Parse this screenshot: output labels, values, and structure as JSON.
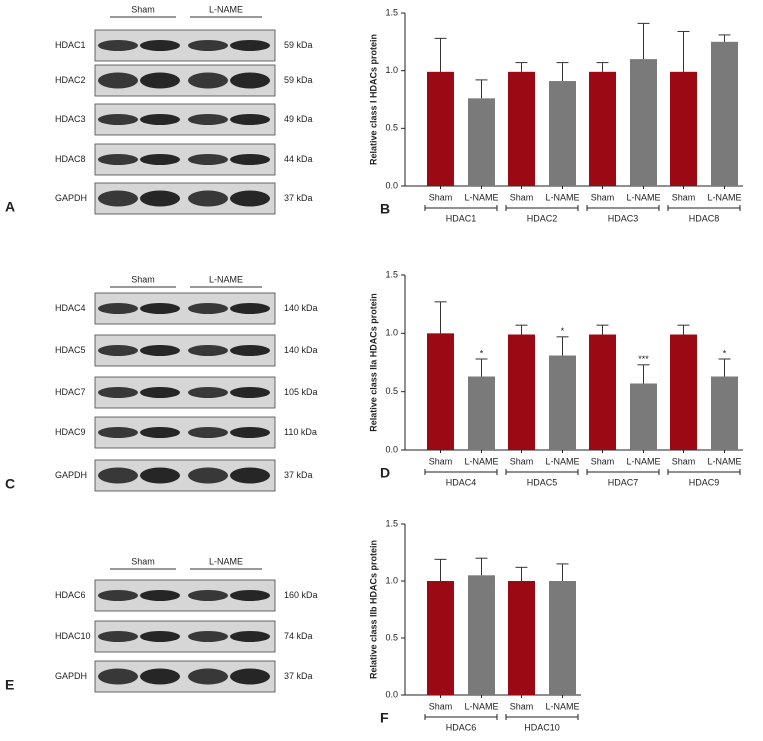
{
  "blots": [
    {
      "panel": "A",
      "groups": [
        "Sham",
        "L-NAME"
      ],
      "rows": [
        {
          "label": "HDAC1",
          "size": "59 kDa"
        },
        {
          "label": "HDAC2",
          "size": "59 kDa"
        },
        {
          "label": "HDAC3",
          "size": "49 kDa"
        },
        {
          "label": "HDAC8",
          "size": "44 kDa"
        },
        {
          "label": "GAPDH",
          "size": "37 kDa"
        }
      ]
    },
    {
      "panel": "C",
      "groups": [
        "Sham",
        "L-NAME"
      ],
      "rows": [
        {
          "label": "HDAC4",
          "size": "140 kDa"
        },
        {
          "label": "HDAC5",
          "size": "140 kDa"
        },
        {
          "label": "HDAC7",
          "size": "105 kDa"
        },
        {
          "label": "HDAC9",
          "size": "110 kDa"
        },
        {
          "label": "GAPDH",
          "size": "37 kDa"
        }
      ]
    },
    {
      "panel": "E",
      "groups": [
        "Sham",
        "L-NAME"
      ],
      "rows": [
        {
          "label": "HDAC6",
          "size": "160 kDa"
        },
        {
          "label": "HDAC10",
          "size": "74 kDa"
        },
        {
          "label": "GAPDH",
          "size": "37 kDa"
        }
      ]
    }
  ],
  "chart_data": [
    {
      "type": "bar",
      "panel": "B",
      "y_label": "Relative class I HDACs protein",
      "categories": [
        "HDAC1",
        "HDAC2",
        "HDAC3",
        "HDAC8"
      ],
      "series": [
        {
          "name": "Sham",
          "color": "#9b0a14",
          "values": [
            0.99,
            0.99,
            0.99,
            0.99
          ],
          "errors": [
            0.29,
            0.08,
            0.08,
            0.35
          ]
        },
        {
          "name": "L-NAME",
          "color": "#7a7a7a",
          "values": [
            0.76,
            0.91,
            1.1,
            1.25
          ],
          "errors": [
            0.16,
            0.16,
            0.31,
            0.06
          ]
        }
      ],
      "ylim": [
        0,
        1.5
      ],
      "yticks": [
        {
          "value": 0,
          "label": "0.0"
        },
        {
          "value": 0.5,
          "label": "0.5"
        },
        {
          "value": 1,
          "label": "1.0"
        },
        {
          "value": 1.5,
          "label": "1.5"
        }
      ]
    },
    {
      "type": "bar",
      "panel": "D",
      "y_label": "Relative class IIa HDACs protein",
      "categories": [
        "HDAC4",
        "HDAC5",
        "HDAC7",
        "HDAC9"
      ],
      "series": [
        {
          "name": "Sham",
          "color": "#9b0a14",
          "values": [
            1.0,
            0.99,
            0.99,
            0.99
          ],
          "errors": [
            0.27,
            0.08,
            0.08,
            0.08
          ]
        },
        {
          "name": "L-NAME",
          "color": "#7a7a7a",
          "values": [
            0.63,
            0.81,
            0.57,
            0.63
          ],
          "errors": [
            0.15,
            0.16,
            0.16,
            0.15
          ],
          "significance": [
            "*",
            "*",
            "***",
            "*"
          ]
        }
      ],
      "ylim": [
        0,
        1.5
      ],
      "yticks": [
        {
          "value": 0,
          "label": "0.0"
        },
        {
          "value": 0.5,
          "label": "0.5"
        },
        {
          "value": 1,
          "label": "1.0"
        },
        {
          "value": 1.5,
          "label": "1.5"
        }
      ]
    },
    {
      "type": "bar",
      "panel": "F",
      "y_label": "Relative class IIb HDACs protein",
      "categories": [
        "HDAC6",
        "HDAC10"
      ],
      "series": [
        {
          "name": "Sham",
          "color": "#9b0a14",
          "values": [
            1.0,
            1.0
          ],
          "errors": [
            0.19,
            0.12
          ]
        },
        {
          "name": "L-NAME",
          "color": "#7a7a7a",
          "values": [
            1.05,
            1.0
          ],
          "errors": [
            0.15,
            0.15
          ]
        }
      ],
      "ylim": [
        0,
        1.5
      ],
      "yticks": [
        {
          "value": 0,
          "label": "0.0"
        },
        {
          "value": 0.5,
          "label": "0.5"
        },
        {
          "value": 1,
          "label": "1.0"
        },
        {
          "value": 1.5,
          "label": "1.5"
        }
      ]
    }
  ]
}
